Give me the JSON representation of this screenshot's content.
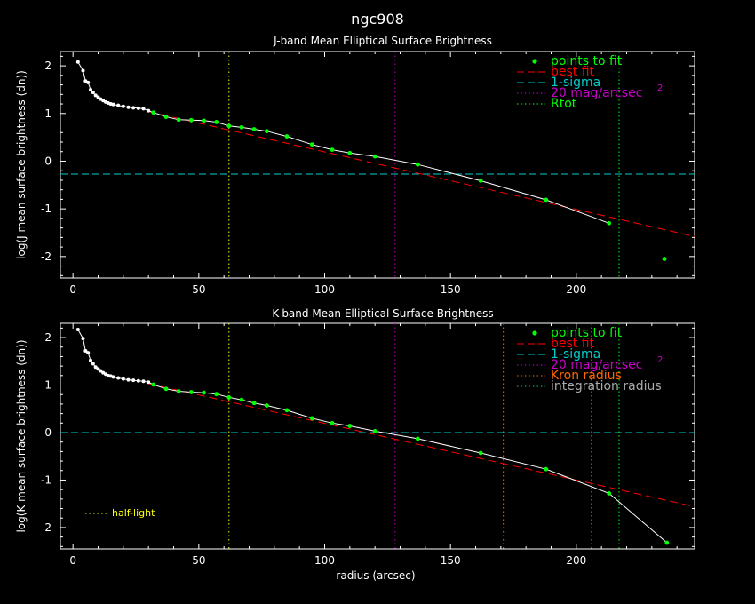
{
  "page_title": "ngc908",
  "legend_labels": {
    "points": "points to fit",
    "best_fit": "best fit",
    "sigma": "1-sigma",
    "mag": "20 mag/arcsec",
    "mag_sup": "2",
    "rtot": "Rtot",
    "kron": "Kron radius",
    "integration": "integration radius",
    "half_light": "half-light"
  },
  "colors": {
    "background": "#000000",
    "axes": "#ffffff",
    "profile": "#ffffff",
    "fit_points": "#00ff00",
    "best_fit": "#ff0000",
    "sigma": "#00cccc",
    "mag": "#cc00cc",
    "rtot": "#00ff00",
    "kron": "#ff6600",
    "integration": "#00cc66",
    "half_light": "#ffff00"
  },
  "chart_data": [
    {
      "type": "line",
      "title": "J-band Mean Elliptical Surface Brightness",
      "xlabel": "",
      "ylabel": "log(J mean surface brightness (dn))",
      "xlim": [
        -5,
        247
      ],
      "ylim": [
        -2.45,
        2.3
      ],
      "xticks": [
        0,
        50,
        100,
        150,
        200
      ],
      "yticks": [
        -2,
        -1,
        0,
        1,
        2
      ],
      "legend_position": "top-right",
      "legend_keys": [
        "points",
        "best_fit",
        "sigma",
        "mag",
        "rtot"
      ],
      "profile": {
        "x": [
          2,
          4,
          5,
          6,
          7,
          8,
          9,
          10,
          11,
          12,
          13,
          14,
          15,
          16,
          18,
          20,
          22,
          24,
          26,
          28,
          30,
          32,
          37,
          42,
          47,
          52,
          57,
          62,
          67,
          72,
          77,
          85,
          95,
          103,
          110,
          120,
          137,
          162,
          188,
          213
        ],
        "y": [
          2.08,
          1.9,
          1.68,
          1.65,
          1.5,
          1.44,
          1.38,
          1.34,
          1.3,
          1.27,
          1.24,
          1.22,
          1.2,
          1.19,
          1.17,
          1.15,
          1.13,
          1.12,
          1.11,
          1.1,
          1.06,
          1.02,
          0.93,
          0.87,
          0.86,
          0.85,
          0.82,
          0.74,
          0.71,
          0.67,
          0.63,
          0.52,
          0.35,
          0.24,
          0.17,
          0.1,
          -0.07,
          -0.41,
          -0.81,
          -1.3
        ]
      },
      "fit_points": {
        "x": [
          32,
          37,
          42,
          47,
          52,
          57,
          62,
          67,
          72,
          77,
          85,
          95,
          103,
          110,
          120,
          137,
          162,
          188,
          213,
          235
        ],
        "y": [
          1.02,
          0.93,
          0.87,
          0.86,
          0.85,
          0.82,
          0.74,
          0.71,
          0.67,
          0.63,
          0.52,
          0.35,
          0.24,
          0.17,
          0.1,
          -0.07,
          -0.41,
          -0.81,
          -1.3,
          -2.05
        ]
      },
      "best_fit": {
        "x": [
          30,
          247
        ],
        "y": [
          1.04,
          -1.58
        ]
      },
      "sigma_level": -0.27,
      "mag_radius": 128,
      "rtot_radius": 217,
      "half_light_radius": 62,
      "kron_radius": null,
      "integration_radius": null,
      "show_half_light_label": false
    },
    {
      "type": "line",
      "title": "K-band Mean Elliptical Surface Brightness",
      "xlabel": "radius (arcsec)",
      "ylabel": "log(K mean surface brightness (dn))",
      "xlim": [
        -5,
        247
      ],
      "ylim": [
        -2.45,
        2.3
      ],
      "xticks": [
        0,
        50,
        100,
        150,
        200
      ],
      "yticks": [
        -2,
        -1,
        0,
        1,
        2
      ],
      "legend_position": "top-right",
      "legend_keys": [
        "points",
        "best_fit",
        "sigma",
        "mag",
        "kron",
        "integration"
      ],
      "profile": {
        "x": [
          2,
          4,
          5,
          6,
          7,
          8,
          9,
          10,
          11,
          12,
          13,
          14,
          15,
          16,
          18,
          20,
          22,
          24,
          26,
          28,
          30,
          32,
          37,
          42,
          47,
          52,
          57,
          62,
          67,
          72,
          77,
          85,
          95,
          103,
          110,
          120,
          137,
          162,
          188,
          213,
          236
        ],
        "y": [
          2.17,
          1.98,
          1.72,
          1.68,
          1.52,
          1.45,
          1.38,
          1.34,
          1.3,
          1.26,
          1.23,
          1.2,
          1.19,
          1.17,
          1.15,
          1.13,
          1.11,
          1.1,
          1.09,
          1.08,
          1.06,
          1.01,
          0.92,
          0.87,
          0.85,
          0.84,
          0.81,
          0.74,
          0.69,
          0.62,
          0.57,
          0.47,
          0.3,
          0.2,
          0.14,
          0.03,
          -0.13,
          -0.43,
          -0.77,
          -1.28,
          -2.32
        ]
      },
      "fit_points": {
        "x": [
          32,
          37,
          42,
          47,
          52,
          57,
          62,
          67,
          72,
          77,
          85,
          95,
          103,
          110,
          120,
          137,
          162,
          188,
          213,
          236
        ],
        "y": [
          1.01,
          0.92,
          0.87,
          0.85,
          0.84,
          0.81,
          0.74,
          0.69,
          0.62,
          0.57,
          0.47,
          0.3,
          0.2,
          0.14,
          0.03,
          -0.13,
          -0.43,
          -0.77,
          -1.28,
          -2.32
        ]
      },
      "best_fit": {
        "x": [
          30,
          247
        ],
        "y": [
          1.03,
          -1.56
        ]
      },
      "sigma_level": 0.0,
      "mag_radius": 128,
      "rtot_radius": 217,
      "half_light_radius": 62,
      "kron_radius": 171,
      "integration_radius": 206,
      "show_half_light_label": true
    }
  ]
}
